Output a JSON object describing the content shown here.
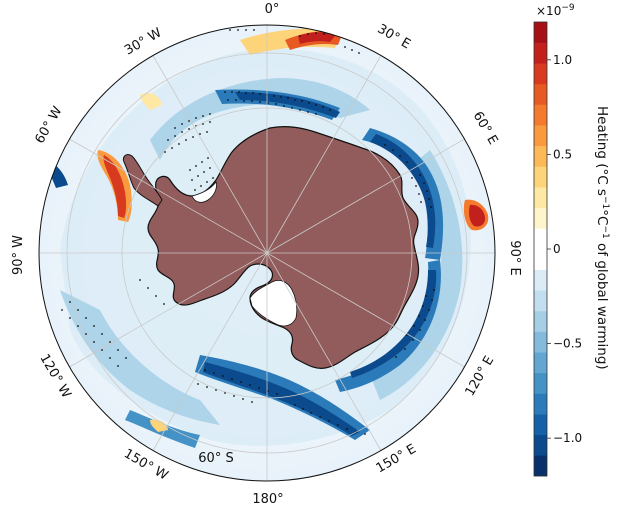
{
  "map": {
    "projection": "south-polar-stereographic",
    "continent_color": "#935c5c",
    "ocean_background": "#ffffff",
    "lon_labels": [
      {
        "text": "0°",
        "lon": 0
      },
      {
        "text": "30° E",
        "lon": 30
      },
      {
        "text": "60° E",
        "lon": 60
      },
      {
        "text": "90° E",
        "lon": 90
      },
      {
        "text": "120° E",
        "lon": 120
      },
      {
        "text": "150° E",
        "lon": 150
      },
      {
        "text": "180°",
        "lon": 180
      },
      {
        "text": "150° W",
        "lon": -150
      },
      {
        "text": "120° W",
        "lon": -120
      },
      {
        "text": "90° W",
        "lon": -90
      },
      {
        "text": "60° W",
        "lon": -60
      },
      {
        "text": "30° W",
        "lon": -30
      }
    ],
    "lat_label": {
      "text": "60° S",
      "lat": -60
    },
    "lat_circles": [
      -50,
      -60
    ],
    "stippling": "dots mark statistically significant regions"
  },
  "colorbar": {
    "title": "Heating (°C s",
    "title_sup1": "−1",
    "title_mid": "°C",
    "title_sup2": "−1",
    "title_end": " of global warming)",
    "multiplier": "×10",
    "multiplier_exp": "−9",
    "min": -1.2,
    "max": 1.2,
    "ticks": [
      {
        "value": 1.0,
        "label": "1.0"
      },
      {
        "value": 0.5,
        "label": "0.5"
      },
      {
        "value": 0.0,
        "label": "0"
      },
      {
        "value": -0.5,
        "label": "−0.5"
      },
      {
        "value": -1.0,
        "label": "−1.0"
      }
    ],
    "colors": [
      "#08306b",
      "#0b4a8c",
      "#1561a8",
      "#2b7bba",
      "#4592c6",
      "#63a6d2",
      "#84bbdd",
      "#a6cfe6",
      "#c3dfef",
      "#dcecf6",
      "#ffffff",
      "#ffffff",
      "#fff5cc",
      "#ffe8a3",
      "#fdd47a",
      "#fbb957",
      "#f99a3f",
      "#f47a2e",
      "#e85a24",
      "#d73a1f",
      "#c2201c",
      "#a50f15"
    ]
  }
}
